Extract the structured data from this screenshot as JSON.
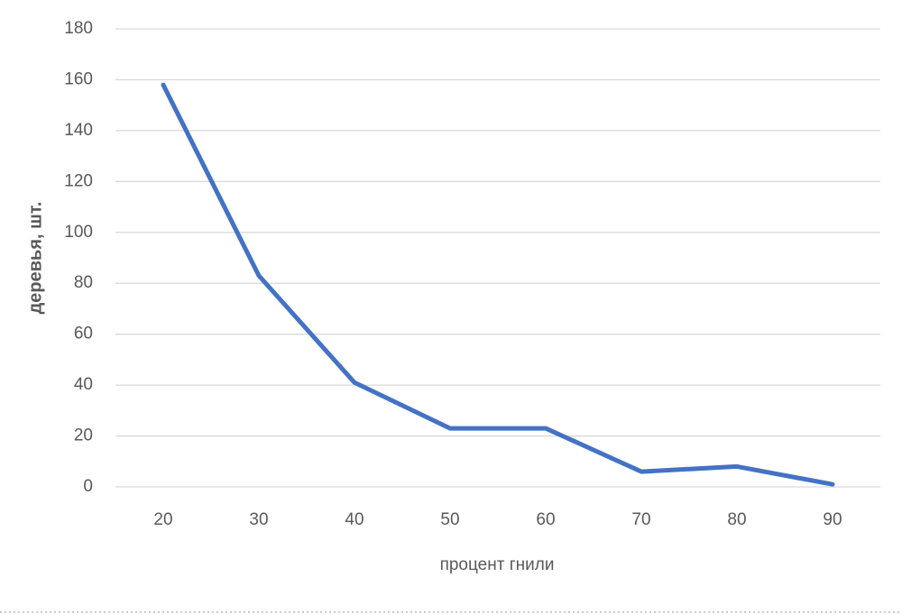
{
  "chart_data": {
    "type": "line",
    "x_label": "процент гнили",
    "y_label": "деревья, шт.",
    "categories": [
      "20",
      "30",
      "40",
      "50",
      "60",
      "70",
      "80",
      "90"
    ],
    "values": [
      158,
      83,
      41,
      23,
      23,
      6,
      8,
      1
    ],
    "color": "#4472c4",
    "ylim": [
      0,
      180
    ],
    "yticks": [
      0,
      20,
      40,
      60,
      80,
      100,
      120,
      140,
      160,
      180
    ],
    "grid": true
  }
}
